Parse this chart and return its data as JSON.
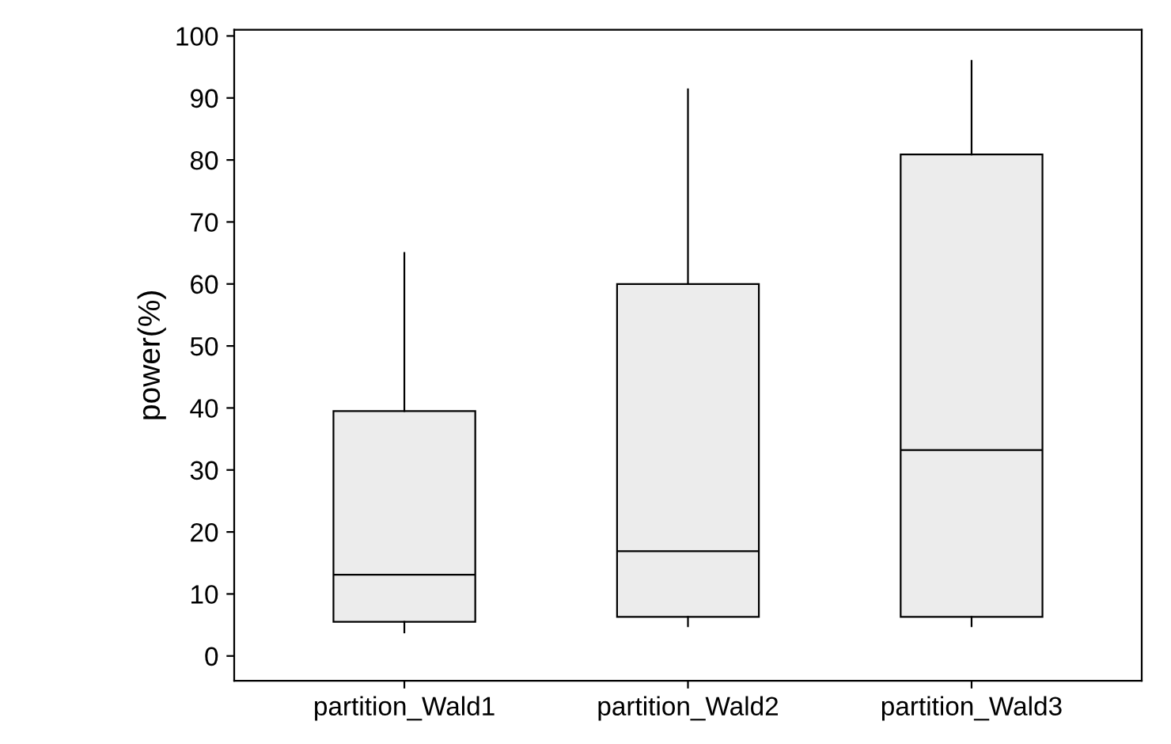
{
  "chart_data": {
    "type": "box",
    "ylabel": "power(%)",
    "categories": [
      "partition_Wald1",
      "partition_Wald2",
      "partition_Wald3"
    ],
    "boxes": [
      {
        "low": 3.8,
        "q1": 5.5,
        "median": 13.1,
        "q3": 39.5,
        "high": 65
      },
      {
        "low": 4.8,
        "q1": 6.3,
        "median": 16.9,
        "q3": 60,
        "high": 91.4
      },
      {
        "low": 4.8,
        "q1": 6.3,
        "median": 33.2,
        "q3": 80.9,
        "high": 96
      }
    ],
    "color": "#ececec",
    "ylim": [
      -4,
      101
    ],
    "yticks": [
      0,
      10,
      20,
      30,
      40,
      50,
      60,
      70,
      80,
      90,
      100
    ],
    "grid": false,
    "legend": false
  }
}
